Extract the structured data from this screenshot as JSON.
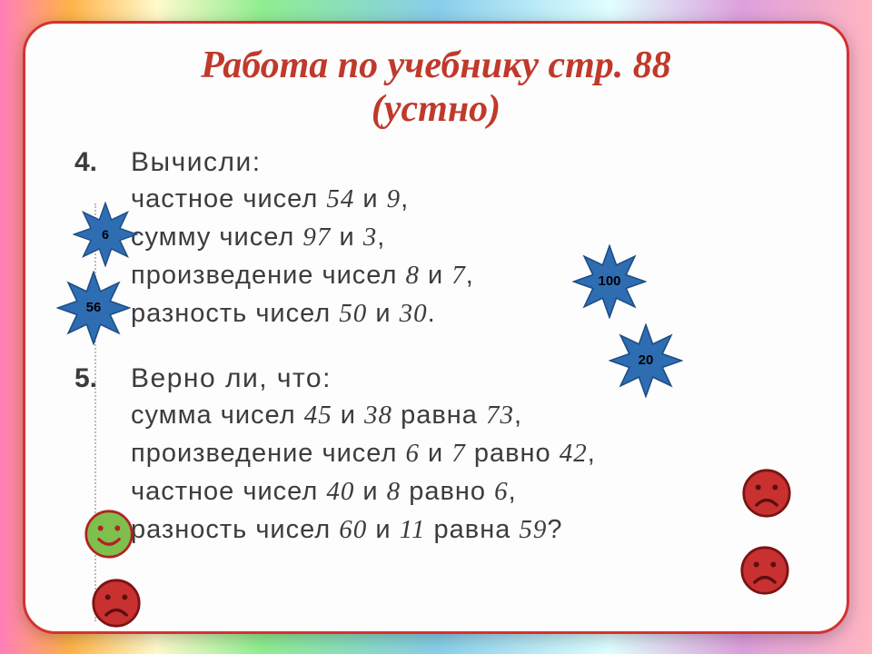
{
  "title_line1": "Работа по учебнику стр. 88",
  "title_line2": "(устно)",
  "task4": {
    "num": "4.",
    "head": "Вычисли:",
    "l1_a": "частное чисел ",
    "l1_b": "54",
    "l1_c": " и ",
    "l1_d": "9",
    "l1_e": ",",
    "l2_a": "сумму чисел ",
    "l2_b": "97",
    "l2_c": " и ",
    "l2_d": "3",
    "l2_e": ",",
    "l3_a": "произведение чисел ",
    "l3_b": "8",
    "l3_c": " и ",
    "l3_d": "7",
    "l3_e": ",",
    "l4_a": "разность чисел ",
    "l4_b": "50",
    "l4_c": " и ",
    "l4_d": "30",
    "l4_e": "."
  },
  "task5": {
    "num": "5.",
    "head": "Верно ли, что:",
    "l1_a": "сумма чисел ",
    "l1_b": "45",
    "l1_c": " и ",
    "l1_d": "38",
    "l1_e": " равна ",
    "l1_f": "73",
    "l1_g": ",",
    "l2_a": "произведение чисел ",
    "l2_b": "6",
    "l2_c": " и ",
    "l2_d": "7",
    "l2_e": " равно ",
    "l2_f": "42",
    "l2_g": ",",
    "l3_a": "частное чисел ",
    "l3_b": "40",
    "l3_c": " и ",
    "l3_d": "8",
    "l3_e": " равно ",
    "l3_f": "6",
    "l3_g": ",",
    "l4_a": "разность чисел ",
    "l4_b": "60",
    "l4_c": " и ",
    "l4_d": "11",
    "l4_e": " равна ",
    "l4_f": "59",
    "l4_g": "?"
  },
  "stars": {
    "s6": {
      "value": "6",
      "fill": "#2f6db3",
      "stroke": "#1e4e85"
    },
    "s56": {
      "value": "56",
      "fill": "#2f6db3",
      "stroke": "#1e4e85"
    },
    "s100": {
      "value": "100",
      "fill": "#2f6db3",
      "stroke": "#1e4e85"
    },
    "s20": {
      "value": "20",
      "fill": "#2f6db3",
      "stroke": "#1e4e85"
    }
  },
  "faces": {
    "happy": {
      "fill": "#7fbf4d",
      "stroke": "#b22222",
      "feature": "#b22222"
    },
    "sad": {
      "fill": "#c93030",
      "stroke": "#7a1414",
      "feature": "#5a0f0f"
    }
  }
}
